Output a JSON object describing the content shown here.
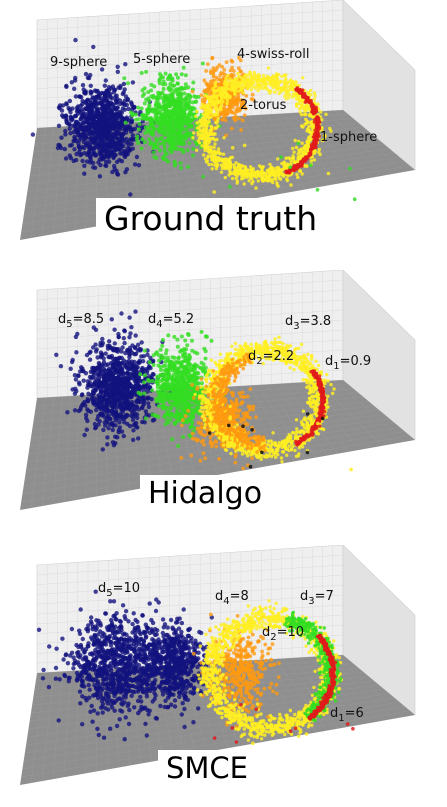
{
  "colors": {
    "wall": "#efefef",
    "wall_side": "#e2e2e2",
    "grid": "#d6d6d6",
    "floor": "#8f8f8f",
    "floor_grid": "#9c9c9c",
    "navy": "#13137e",
    "green": "#33dd22",
    "yellow": "#ffee22",
    "orange": "#ff9a10",
    "red": "#e11b1b",
    "black": "#111111"
  },
  "panels": [
    {
      "id": "ground-truth",
      "caption": "Ground truth",
      "labels": [
        {
          "key": "9-sphere",
          "text": "9-sphere"
        },
        {
          "key": "5-sphere",
          "text": "5-sphere"
        },
        {
          "key": "4-swiss-roll",
          "text": "4-swiss-roll"
        },
        {
          "key": "2-torus",
          "text": "2-torus"
        },
        {
          "key": "1-sphere",
          "text": "1-sphere"
        }
      ]
    },
    {
      "id": "hidalgo",
      "caption": "Hidalgo",
      "labels": [
        {
          "key": "d5",
          "base": "d",
          "sub": "5",
          "rest": "=8.5"
        },
        {
          "key": "d4",
          "base": "d",
          "sub": "4",
          "rest": "=5.2"
        },
        {
          "key": "d3",
          "base": "d",
          "sub": "3",
          "rest": "=3.8"
        },
        {
          "key": "d2",
          "base": "d",
          "sub": "2",
          "rest": "=2.2"
        },
        {
          "key": "d1",
          "base": "d",
          "sub": "1",
          "rest": "=0.9"
        }
      ]
    },
    {
      "id": "smce",
      "caption": "SMCE",
      "labels": [
        {
          "key": "d5",
          "base": "d",
          "sub": "5",
          "rest": "=10"
        },
        {
          "key": "d4",
          "base": "d",
          "sub": "4",
          "rest": "=8"
        },
        {
          "key": "d3",
          "base": "d",
          "sub": "3",
          "rest": "=7"
        },
        {
          "key": "d2",
          "base": "d",
          "sub": "2",
          "rest": "=10"
        },
        {
          "key": "d1",
          "base": "d",
          "sub": "1",
          "rest": "=6"
        }
      ]
    }
  ]
}
